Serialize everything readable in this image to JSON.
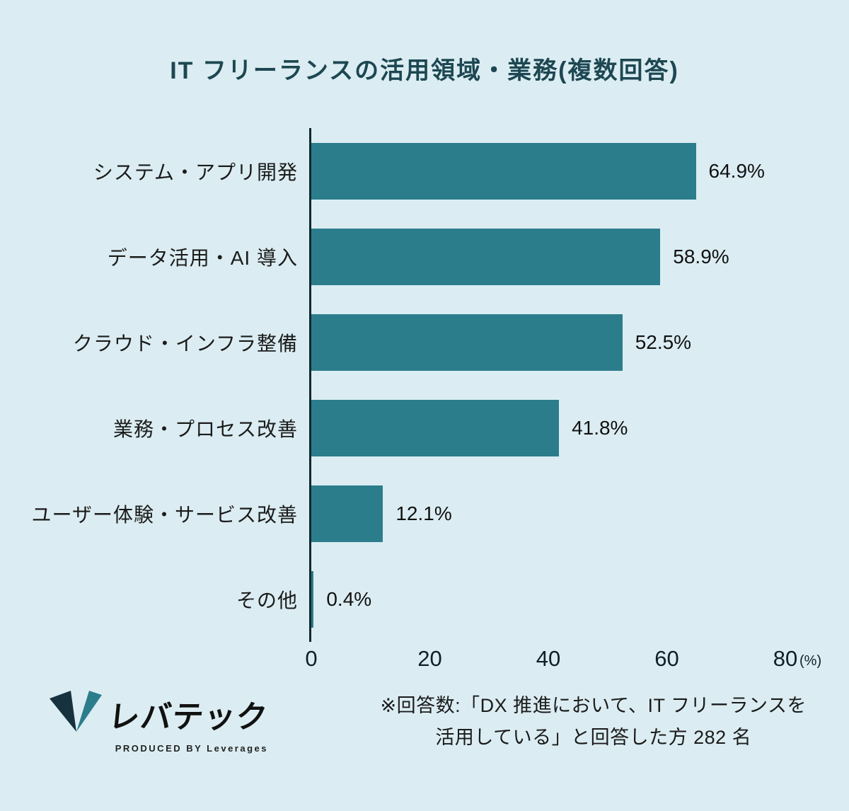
{
  "page": {
    "title": "IT フリーランスの活用領域・業務(複数回答)"
  },
  "chart_data": {
    "type": "bar",
    "orientation": "horizontal",
    "title": "IT フリーランスの活用領域・業務(複数回答)",
    "categories": [
      "システム・アプリ開発",
      "データ活用・AI 導入",
      "クラウド・インフラ整備",
      "業務・プロセス改善",
      "ユーザー体験・サービス改善",
      "その他"
    ],
    "values": [
      64.9,
      58.9,
      52.5,
      41.8,
      12.1,
      0.4
    ],
    "value_labels": [
      "64.9%",
      "58.9%",
      "52.5%",
      "41.8%",
      "12.1%",
      "0.4%"
    ],
    "xlabel": "(%)",
    "xlim": [
      0,
      80
    ],
    "x_ticks": [
      0,
      20,
      40,
      60,
      80
    ],
    "grid": "off",
    "legend": "none",
    "bar_color": "#2b7d8c",
    "background_color": "#dbedf2"
  },
  "footer": {
    "logo_text": "レバテック",
    "logo_subtext": "PRODUCED BY Leverages",
    "note_line1": "※回答数:「DX 推進において、IT フリーランスを",
    "note_line2": "活用している」と回答した方 282 名"
  }
}
